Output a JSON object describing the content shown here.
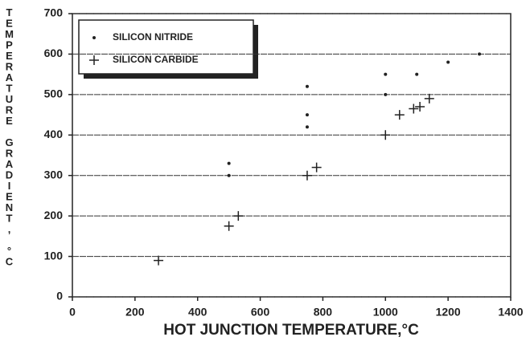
{
  "chart_data": {
    "type": "scatter",
    "xlabel": "HOT JUNCTION TEMPERATURE,°C",
    "ylabel": "TEMPERATURE GRADIENT, °C",
    "xlim": [
      0,
      1400
    ],
    "xticks": [
      0,
      200,
      400,
      600,
      800,
      1000,
      1200,
      1400
    ],
    "ylim": [
      0,
      700
    ],
    "yticks": [
      0,
      100,
      200,
      300,
      400,
      500,
      600,
      700
    ],
    "grid": true,
    "legend": "upper left",
    "series": [
      {
        "name": "SILICON NITRIDE",
        "color": "#222222",
        "marker": "dot",
        "x": [
          500,
          500,
          750,
          750,
          750,
          1000,
          1000,
          1100,
          1200,
          1300
        ],
        "values": [
          330,
          300,
          520,
          450,
          420,
          550,
          500,
          550,
          580,
          600
        ]
      },
      {
        "name": "SILICON CARBIDE",
        "color": "#222222",
        "marker": "plus",
        "x": [
          275,
          500,
          530,
          750,
          780,
          1000,
          1045,
          1090,
          1110,
          1140
        ],
        "values": [
          90,
          175,
          200,
          300,
          320,
          400,
          450,
          465,
          470,
          490
        ]
      }
    ]
  }
}
